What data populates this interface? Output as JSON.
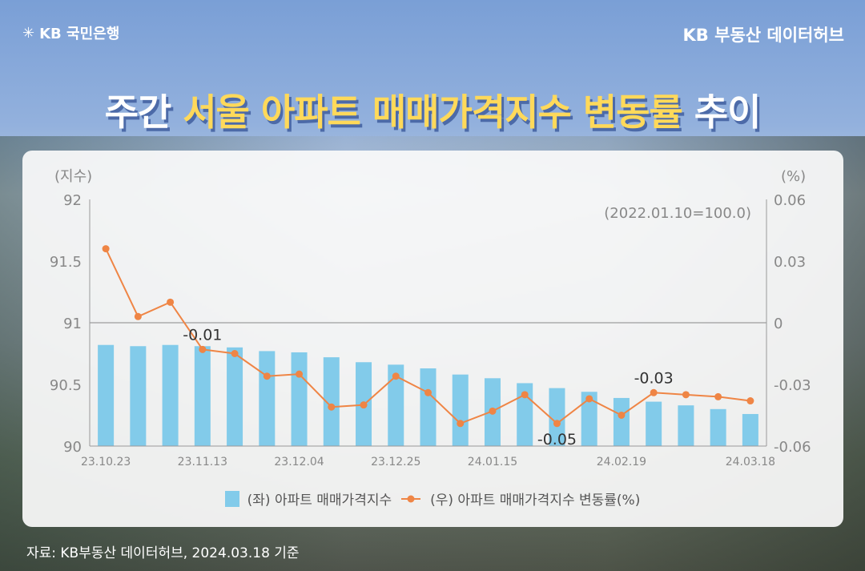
{
  "header": {
    "logo_text": "KB 국민은행",
    "brand": "KB 부동산 데이터허브",
    "title_white_1": "주간",
    "title_yellow": "서울 아파트 매매가격지수 변동률",
    "title_white_2": "추이"
  },
  "colors": {
    "bar": "#82cbea",
    "line": "#ef8545",
    "title_accent": "#ffd95a"
  },
  "chart_data": {
    "type": "bar+line",
    "left_axis_unit": "(지수)",
    "right_axis_unit": "(%)",
    "base_note": "(2022.01.10=100.0)",
    "left_ylim": [
      90,
      92
    ],
    "left_ticks": [
      "90",
      "90.5",
      "91",
      "91.5",
      "92"
    ],
    "right_ylim": [
      -0.06,
      0.06
    ],
    "right_ticks": [
      "-0.06",
      "-0.03",
      "0",
      "0.03",
      "0.06"
    ],
    "categories": [
      "23.10.23",
      "",
      "",
      "23.11.13",
      "",
      "",
      "23.12.04",
      "",
      "",
      "23.12.25",
      "",
      "",
      "24.01.15",
      "",
      "",
      "",
      "24.02.19",
      "",
      "",
      "",
      "24.03.18"
    ],
    "series": [
      {
        "name": "(좌) 아파트 매매가격지수",
        "type": "bar",
        "axis": "left",
        "values": [
          90.82,
          90.81,
          90.82,
          90.81,
          90.8,
          90.77,
          90.76,
          90.72,
          90.68,
          90.66,
          90.63,
          90.58,
          90.55,
          90.51,
          90.47,
          90.44,
          90.39,
          90.36,
          90.33,
          90.3,
          90.26
        ]
      },
      {
        "name": "(우) 아파트 매매가격지수 변동률(%)",
        "type": "line",
        "axis": "right",
        "values": [
          0.036,
          0.003,
          0.01,
          -0.013,
          -0.015,
          -0.026,
          -0.025,
          -0.041,
          -0.04,
          -0.026,
          -0.034,
          -0.049,
          -0.043,
          -0.035,
          -0.049,
          -0.037,
          -0.045,
          -0.034,
          -0.035,
          -0.036,
          -0.038
        ]
      }
    ],
    "annotations": [
      {
        "index": 3,
        "text": "-0.01"
      },
      {
        "index": 14,
        "text": "-0.05",
        "below": true
      },
      {
        "index": 17,
        "text": "-0.03"
      }
    ]
  },
  "source": "자료: KB부동산 데이터허브, 2024.03.18 기준"
}
